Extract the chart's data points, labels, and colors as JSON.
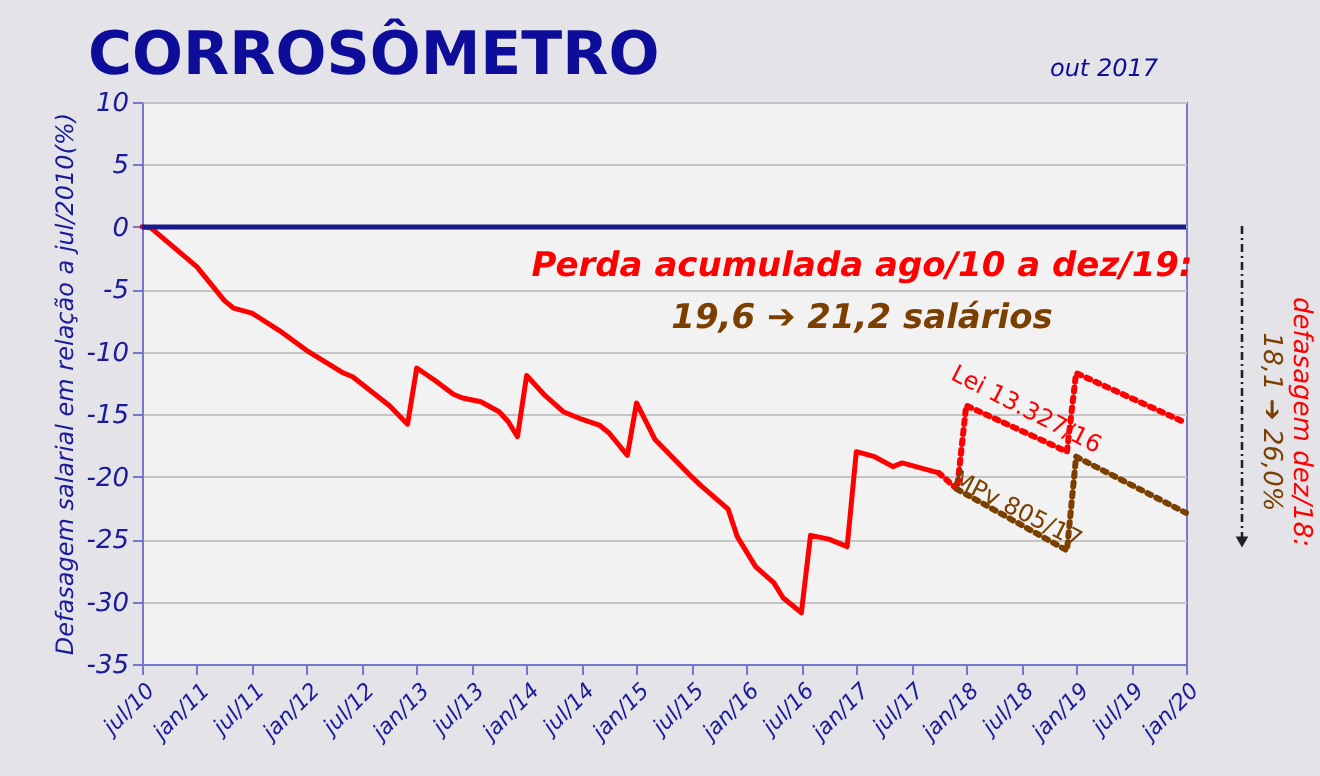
{
  "chart_data": {
    "type": "line",
    "title": "CORROSÔMETRO",
    "subtitle": "out 2017",
    "ylabel": "Defasagem salarial em relação a jul/2010(%)",
    "xlim": [
      "2010-07",
      "2020-01"
    ],
    "xticks": [
      {
        "value": "2010-07",
        "label": "jul/10"
      },
      {
        "value": "2011-01",
        "label": "jan/11"
      },
      {
        "value": "2011-07",
        "label": "jul/11"
      },
      {
        "value": "2012-01",
        "label": "jan/12"
      },
      {
        "value": "2012-07",
        "label": "jul/12"
      },
      {
        "value": "2013-01",
        "label": "jan/13"
      },
      {
        "value": "2013-07",
        "label": "jul/13"
      },
      {
        "value": "2014-01",
        "label": "jan/14"
      },
      {
        "value": "2014-07",
        "label": "jul/14"
      },
      {
        "value": "2015-01",
        "label": "jan/15"
      },
      {
        "value": "2015-07",
        "label": "jul/15"
      },
      {
        "value": "2016-01",
        "label": "jan/16"
      },
      {
        "value": "2016-07",
        "label": "jul/16"
      },
      {
        "value": "2017-01",
        "label": "jan/17"
      },
      {
        "value": "2017-07",
        "label": "jul/17"
      },
      {
        "value": "2018-01",
        "label": "jan/18"
      },
      {
        "value": "2018-07",
        "label": "jul/18"
      },
      {
        "value": "2019-01",
        "label": "jan/19"
      },
      {
        "value": "2019-07",
        "label": "jul/19"
      },
      {
        "value": "2020-01",
        "label": "jan/20"
      }
    ],
    "ylim": [
      -35,
      10
    ],
    "yticks": [
      -35,
      -30,
      -25,
      -20,
      -15,
      -10,
      -5,
      0,
      5,
      10
    ],
    "grid": "y",
    "series": [
      {
        "type": "line",
        "color": "#ff0000",
        "line_style": "solid",
        "x": [
          "2010-07",
          "2010-08",
          "2011-01",
          "2011-04",
          "2011-05",
          "2011-07",
          "2011-10",
          "2012-01",
          "2012-03",
          "2012-05",
          "2012-06",
          "2012-10",
          "2012-12",
          "2013-01",
          "2013-03",
          "2013-05",
          "2013-06",
          "2013-08",
          "2013-10",
          "2013-11",
          "2013-12",
          "2014-01",
          "2014-03",
          "2014-05",
          "2014-07",
          "2014-09",
          "2014-10",
          "2014-12",
          "2015-01",
          "2015-03",
          "2015-07",
          "2015-08",
          "2015-11",
          "2015-12",
          "2016-02",
          "2016-04",
          "2016-05",
          "2016-07",
          "2016-08",
          "2016-10",
          "2016-12",
          "2017-01",
          "2017-03",
          "2017-05",
          "2017-06",
          "2017-08",
          "2017-10"
        ],
        "values": [
          0,
          -0.1,
          -3.2,
          -5.9,
          -6.5,
          -6.9,
          -8.3,
          -9.9,
          -10.8,
          -11.7,
          -12,
          -14.3,
          -15.8,
          -11.3,
          -12.3,
          -13.4,
          -13.7,
          -14,
          -14.8,
          -15.6,
          -16.8,
          -11.9,
          -13.5,
          -14.8,
          -15.4,
          -15.9,
          -16.5,
          -18.3,
          -14.1,
          -17,
          -20,
          -20.7,
          -22.6,
          -24.8,
          -27.2,
          -28.5,
          -29.7,
          -30.9,
          -24.7,
          -25,
          -25.6,
          -18,
          -18.4,
          -19.2,
          -18.9,
          -19.3,
          -19.7
        ]
      },
      {
        "type": "line",
        "name": "Lei 13.327/16",
        "color": "#ff0000",
        "line_style": "dotted",
        "x": [
          "2017-10",
          "2017-12",
          "2018-01",
          "2018-12",
          "2019-01",
          "2020-01"
        ],
        "values": [
          -19.7,
          -21,
          -14.3,
          -18,
          -11.7,
          -15.7
        ]
      },
      {
        "type": "line",
        "name": "MPv 805/17",
        "color": "#7b3f00",
        "line_style": "dotted",
        "x": [
          "2017-12",
          "2018-12",
          "2019-01",
          "2020-01"
        ],
        "values": [
          -21,
          -25.9,
          -18.4,
          -22.9
        ]
      }
    ],
    "ref_lines": [
      {
        "axis": "y",
        "value": 0,
        "color": "#1a1a8c"
      }
    ],
    "annotations": [
      "Perda acumulada ago/10 a dez/19:",
      "19,6 ➔ 21,2 salários",
      "defasagem dez/18:",
      "18,1 ➔ 26,0%"
    ]
  }
}
